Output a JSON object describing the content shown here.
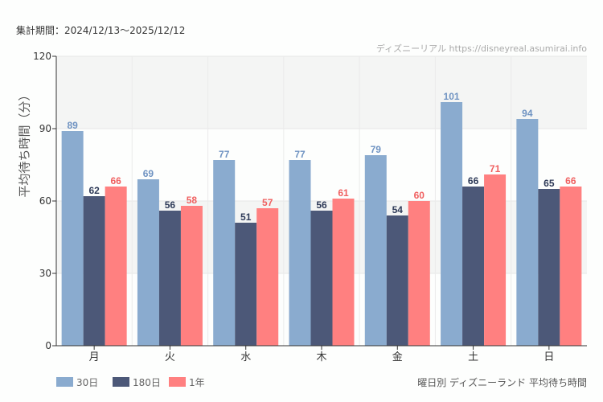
{
  "header": {
    "period": "集計期間：2024/12/13〜2025/12/12",
    "credit": "ディズニーリアル https://disneyreal.asumirai.info",
    "caption": "曜日別 ディズニーランド 平均待ち時間"
  },
  "chart_data": {
    "type": "bar",
    "ylabel": "平均待ち時間（分）",
    "ylim": [
      0,
      120
    ],
    "yticks": [
      0,
      30,
      60,
      90,
      120
    ],
    "categories": [
      "月",
      "火",
      "水",
      "木",
      "金",
      "土",
      "日"
    ],
    "series": [
      {
        "name": "30日",
        "color": "#8aabcf",
        "label_color": "#6f93c2",
        "values": [
          89,
          69,
          77,
          77,
          79,
          101,
          94
        ]
      },
      {
        "name": "180日",
        "color": "#4c5878",
        "label_color": "#2e3a58",
        "values": [
          62,
          56,
          51,
          56,
          54,
          66,
          65
        ]
      },
      {
        "name": "1年",
        "color": "#ff8080",
        "label_color": "#f06060",
        "values": [
          66,
          58,
          57,
          61,
          60,
          71,
          66
        ]
      }
    ],
    "grid": true,
    "legend": "bottom-left"
  }
}
